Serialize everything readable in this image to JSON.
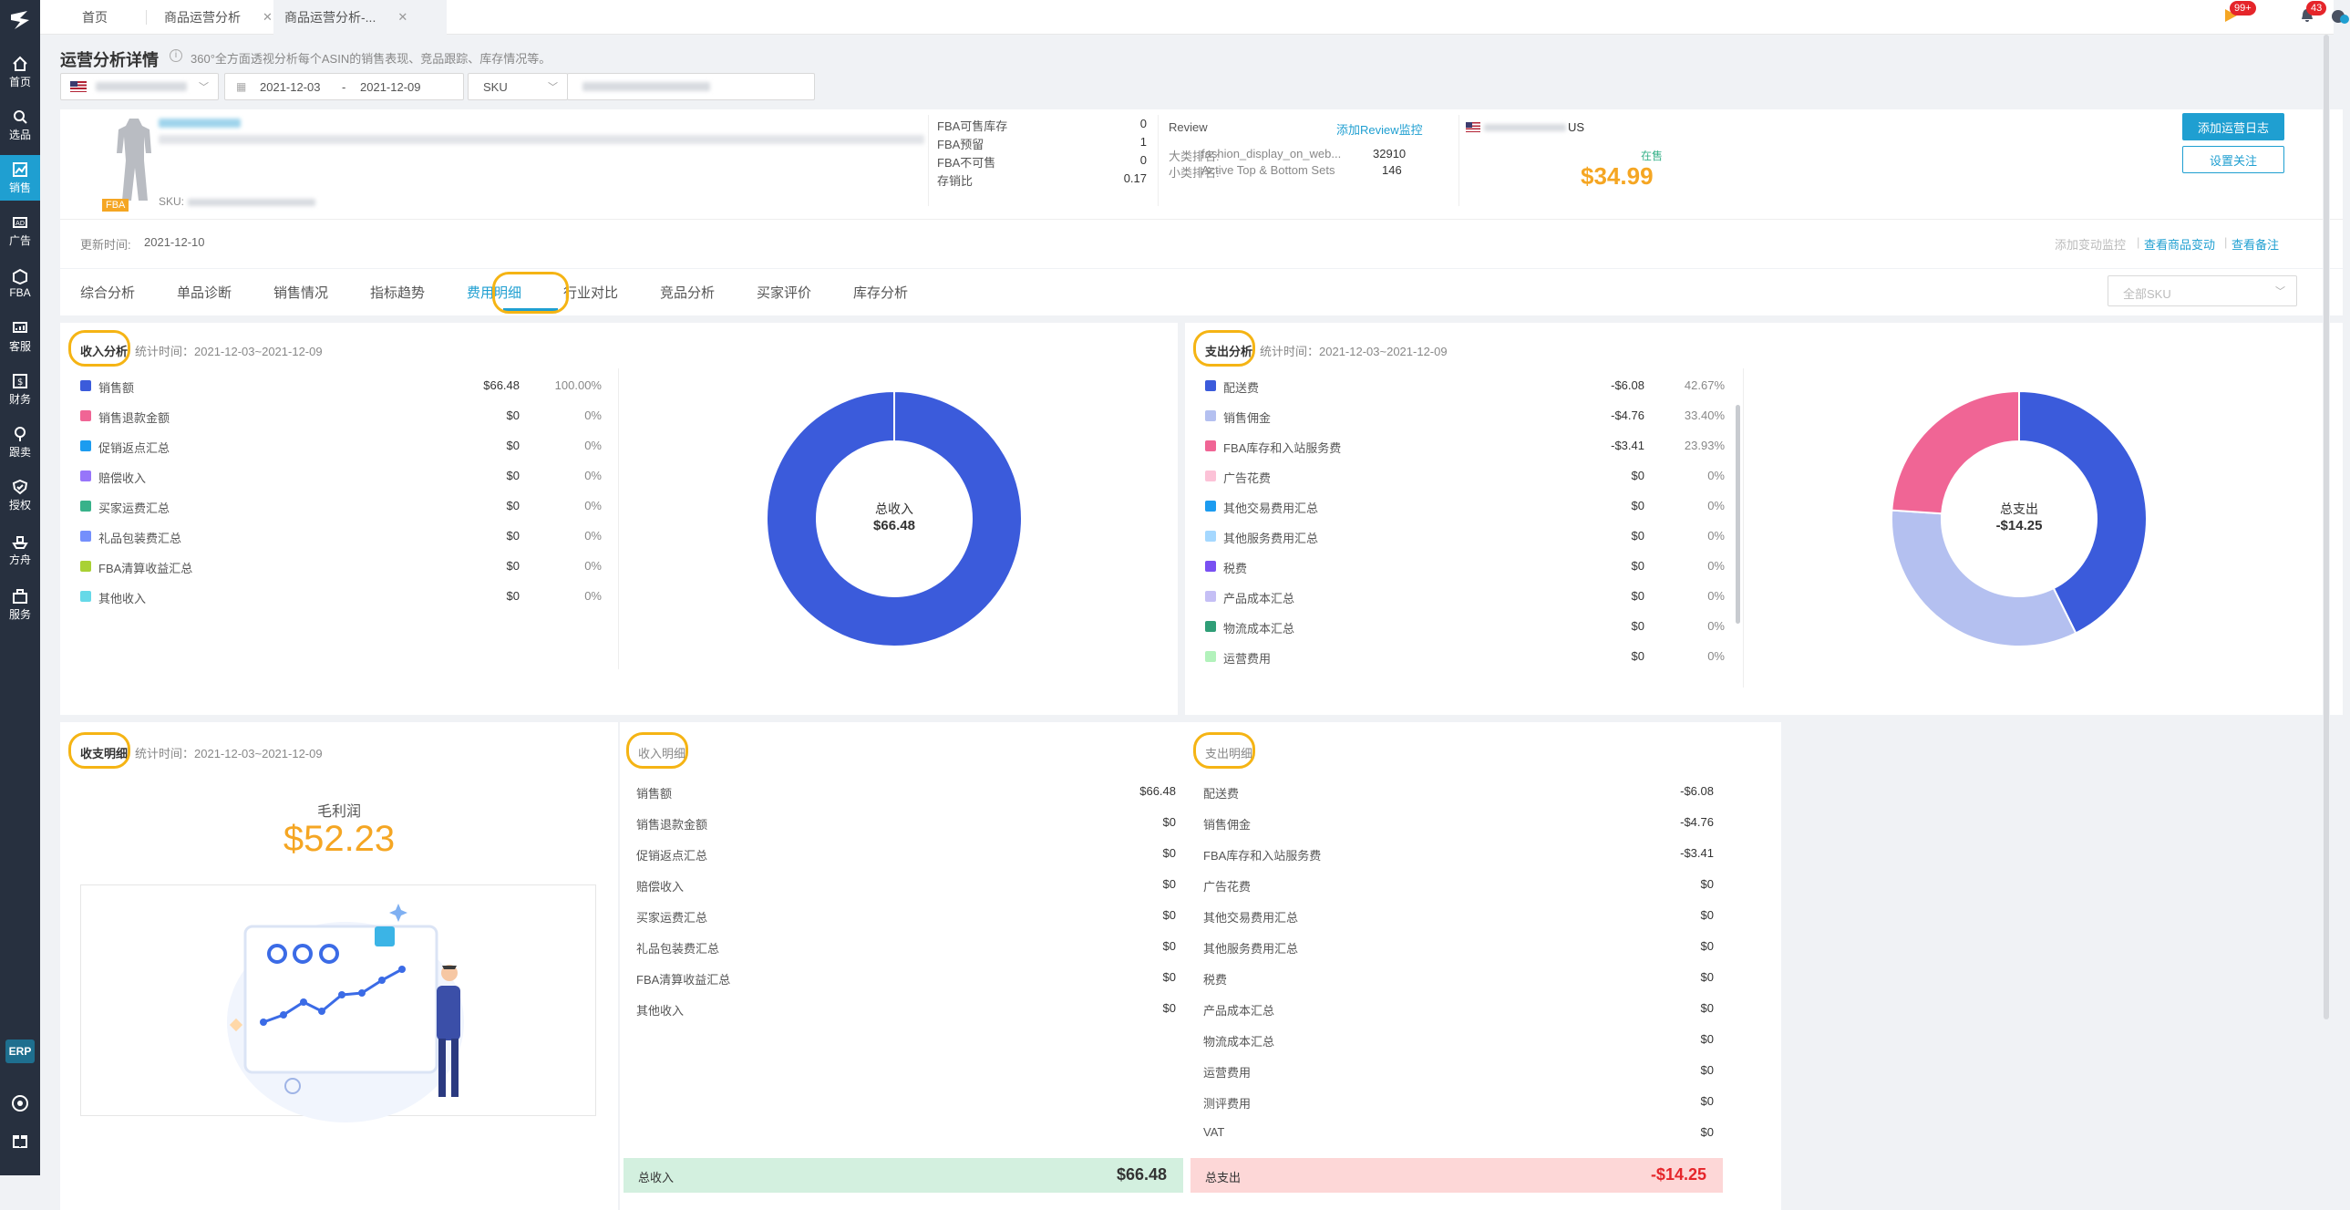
{
  "tabs": [
    {
      "label": "首页"
    },
    {
      "label": "商品运营分析"
    },
    {
      "label": "商品运营分析-..."
    }
  ],
  "topbar": {
    "flag_badge": "99+",
    "bell_badge": "43"
  },
  "sidebar": {
    "items": [
      {
        "label": "首页",
        "icon": "home-icon"
      },
      {
        "label": "选品",
        "icon": "search-icon"
      },
      {
        "label": "销售",
        "icon": "trend-icon"
      },
      {
        "label": "广告",
        "icon": "ad-icon"
      },
      {
        "label": "FBA",
        "icon": "box-icon"
      },
      {
        "label": "客服",
        "icon": "chat-icon"
      },
      {
        "label": "财务",
        "icon": "money-icon"
      },
      {
        "label": "跟卖",
        "icon": "follow-icon"
      },
      {
        "label": "授权",
        "icon": "shield-icon"
      },
      {
        "label": "方舟",
        "icon": "ship-icon"
      },
      {
        "label": "服务",
        "icon": "service-icon"
      }
    ],
    "erp": "ERP"
  },
  "header": {
    "title": "运营分析详情",
    "desc": "360°全方面透视分析每个ASIN的销售表现、竞品跟踪、库存情况等。"
  },
  "filters": {
    "date_start": "2021-12-03",
    "date_sep": "-",
    "date_end": "2021-12-09",
    "type": "SKU"
  },
  "product": {
    "badge": "FBA",
    "sku_label": "SKU:",
    "fba_stats": [
      {
        "label": "FBA可售库存",
        "value": "0"
      },
      {
        "label": "FBA预留",
        "value": "1"
      },
      {
        "label": "FBA不可售",
        "value": "0"
      },
      {
        "label": "存销比",
        "value": "0.17"
      }
    ],
    "review_label": "Review",
    "review_link": "添加Review监控",
    "big_rank_label": "大类排名:",
    "big_rank_cat": "fashion_display_on_web...",
    "big_rank_value": "32910",
    "small_rank_label": "小类排名:",
    "small_rank_cat": "Active Top & Bottom Sets",
    "small_rank_value": "146",
    "country": "US",
    "status": "在售",
    "price": "$34.99",
    "btn_add_log": "添加运营日志",
    "btn_follow": "设置关注",
    "update_label": "更新时间:",
    "update_value": "2021-12-10",
    "link_monitor": "添加变动监控",
    "link_view_change": "查看商品变动",
    "link_view_note": "查看备注"
  },
  "nav_tabs": [
    {
      "label": "综合分析"
    },
    {
      "label": "单品诊断"
    },
    {
      "label": "销售情况"
    },
    {
      "label": "指标趋势"
    },
    {
      "label": "费用明细"
    },
    {
      "label": "行业对比"
    },
    {
      "label": "竞品分析"
    },
    {
      "label": "买家评价"
    },
    {
      "label": "库存分析"
    }
  ],
  "sku_select": "全部SKU",
  "income": {
    "title": "收入分析",
    "stat_time": "统计时间：2021-12-03~2021-12-09",
    "center_label": "总收入",
    "center_value": "$66.48",
    "items": [
      {
        "name": "销售额",
        "value": "$66.48",
        "pct": "100.00%",
        "color": "#3b5bdb"
      },
      {
        "name": "销售退款金额",
        "value": "$0",
        "pct": "0%",
        "color": "#f06595"
      },
      {
        "name": "促销返点汇总",
        "value": "$0",
        "pct": "0%",
        "color": "#1c9cf0"
      },
      {
        "name": "赔偿收入",
        "value": "$0",
        "pct": "0%",
        "color": "#9775fa"
      },
      {
        "name": "买家运费汇总",
        "value": "$0",
        "pct": "0%",
        "color": "#38b28a"
      },
      {
        "name": "礼品包装费汇总",
        "value": "$0",
        "pct": "0%",
        "color": "#748ffc"
      },
      {
        "name": "FBA清算收益汇总",
        "value": "$0",
        "pct": "0%",
        "color": "#a9d134"
      },
      {
        "name": "其他收入",
        "value": "$0",
        "pct": "0%",
        "color": "#66d9e8"
      }
    ]
  },
  "expense": {
    "title": "支出分析",
    "stat_time": "统计时间：2021-12-03~2021-12-09",
    "center_label": "总支出",
    "center_value": "-$14.25",
    "items": [
      {
        "name": "配送费",
        "value": "-$6.08",
        "pct": "42.67%",
        "color": "#3b5bdb"
      },
      {
        "name": "销售佣金",
        "value": "-$4.76",
        "pct": "33.40%",
        "color": "#b4c0f0"
      },
      {
        "name": "FBA库存和入站服务费",
        "value": "-$3.41",
        "pct": "23.93%",
        "color": "#f06595"
      },
      {
        "name": "广告花费",
        "value": "$0",
        "pct": "0%",
        "color": "#fcc2d7"
      },
      {
        "name": "其他交易费用汇总",
        "value": "$0",
        "pct": "0%",
        "color": "#1c9cf0"
      },
      {
        "name": "其他服务费用汇总",
        "value": "$0",
        "pct": "0%",
        "color": "#a5d8ff"
      },
      {
        "name": "税费",
        "value": "$0",
        "pct": "0%",
        "color": "#7950f2"
      },
      {
        "name": "产品成本汇总",
        "value": "$0",
        "pct": "0%",
        "color": "#c5bff5"
      },
      {
        "name": "物流成本汇总",
        "value": "$0",
        "pct": "0%",
        "color": "#2f9e77"
      },
      {
        "name": "运营费用",
        "value": "$0",
        "pct": "0%",
        "color": "#b2f2bb"
      }
    ]
  },
  "summary": {
    "title": "收支明细",
    "stat_time": "统计时间：2021-12-03~2021-12-09",
    "profit_label": "毛利润",
    "profit_value": "$52.23"
  },
  "income_detail": {
    "title": "收入明细",
    "rows": [
      {
        "name": "销售额",
        "value": "$66.48"
      },
      {
        "name": "销售退款金额",
        "value": "$0"
      },
      {
        "name": "促销返点汇总",
        "value": "$0"
      },
      {
        "name": "赔偿收入",
        "value": "$0"
      },
      {
        "name": "买家运费汇总",
        "value": "$0"
      },
      {
        "name": "礼品包装费汇总",
        "value": "$0"
      },
      {
        "name": "FBA清算收益汇总",
        "value": "$0"
      },
      {
        "name": "其他收入",
        "value": "$0"
      }
    ],
    "total_label": "总收入",
    "total_value": "$66.48"
  },
  "expense_detail": {
    "title": "支出明细",
    "rows": [
      {
        "name": "配送费",
        "value": "-$6.08"
      },
      {
        "name": "销售佣金",
        "value": "-$4.76"
      },
      {
        "name": "FBA库存和入站服务费",
        "value": "-$3.41"
      },
      {
        "name": "广告花费",
        "value": "$0"
      },
      {
        "name": "其他交易费用汇总",
        "value": "$0"
      },
      {
        "name": "其他服务费用汇总",
        "value": "$0"
      },
      {
        "name": "税费",
        "value": "$0"
      },
      {
        "name": "产品成本汇总",
        "value": "$0"
      },
      {
        "name": "物流成本汇总",
        "value": "$0"
      },
      {
        "name": "运营费用",
        "value": "$0"
      },
      {
        "name": "测评费用",
        "value": "$0"
      },
      {
        "name": "VAT",
        "value": "$0"
      }
    ],
    "total_label": "总支出",
    "total_value": "-$14.25"
  },
  "chart_data": [
    {
      "type": "pie",
      "title": "收入分析",
      "categories": [
        "销售额",
        "销售退款金额",
        "促销返点汇总",
        "赔偿收入",
        "买家运费汇总",
        "礼品包装费汇总",
        "FBA清算收益汇总",
        "其他收入"
      ],
      "values": [
        66.48,
        0,
        0,
        0,
        0,
        0,
        0,
        0
      ]
    },
    {
      "type": "pie",
      "title": "支出分析",
      "categories": [
        "配送费",
        "销售佣金",
        "FBA库存和入站服务费",
        "广告花费",
        "其他交易费用汇总",
        "其他服务费用汇总",
        "税费",
        "产品成本汇总",
        "物流成本汇总",
        "运营费用"
      ],
      "values": [
        6.08,
        4.76,
        3.41,
        0,
        0,
        0,
        0,
        0,
        0,
        0
      ]
    }
  ]
}
